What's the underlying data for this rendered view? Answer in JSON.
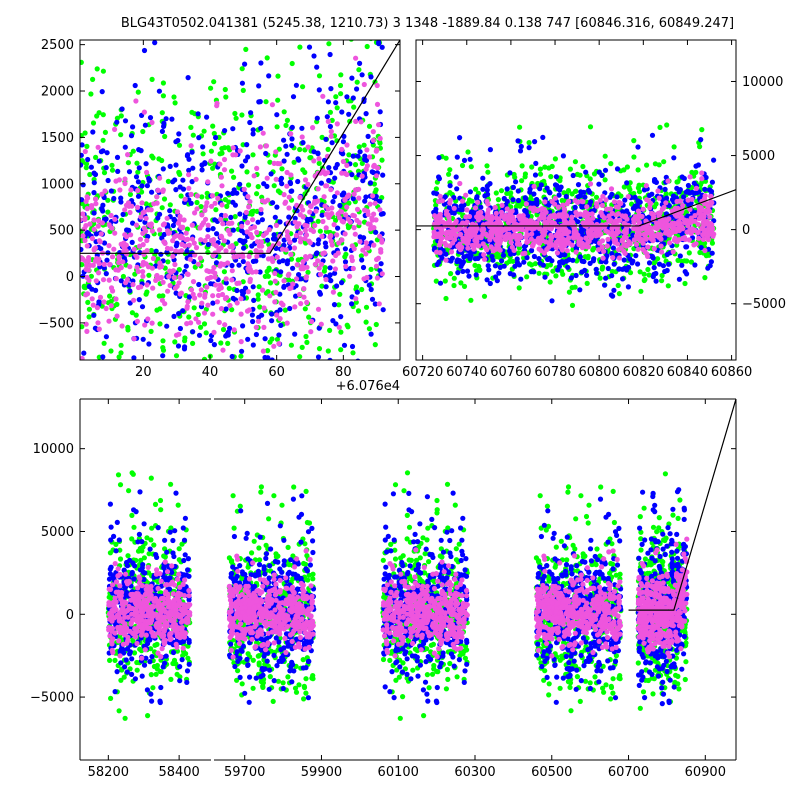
{
  "figure": {
    "title": "BLG43T0502.041381 (5245.38, 1210.73)  3 1348 -1889.84 0.138 747 [60846.316, 60849.247]"
  },
  "colors": {
    "series_a": "#0000ff",
    "series_b": "#00ff00",
    "series_c": "#ee55dd",
    "fit_line": "#000000",
    "background": "#ffffff"
  },
  "chart_data": [
    {
      "type": "scatter",
      "panel": "zoom-top-left",
      "xlim": [
        1,
        97
      ],
      "ylim": [
        -900,
        2550
      ],
      "x_offset_label": "+6.076e4",
      "x_ticks": [
        20,
        40,
        60,
        80
      ],
      "x_tick_labels": [
        "20",
        "40",
        "60",
        "80"
      ],
      "y_ticks": [
        -500,
        0,
        500,
        1000,
        1500,
        2000,
        2500
      ],
      "y_tick_labels": [
        "−500",
        "0",
        "500",
        "1000",
        "1500",
        "2000",
        "2500"
      ],
      "series": [
        {
          "color": "#00ff00",
          "x_range": [
            1,
            92
          ],
          "y_center": 400,
          "y_spread": 900
        },
        {
          "color": "#0000ff",
          "x_range": [
            1,
            92
          ],
          "y_center": 350,
          "y_spread": 800
        },
        {
          "color": "#ee55dd",
          "x_range": [
            1,
            92
          ],
          "y_center": 280,
          "y_spread": 450
        }
      ],
      "model_line": {
        "x": [
          1,
          58,
          97
        ],
        "y": [
          250,
          250,
          2550
        ]
      }
    },
    {
      "type": "scatter",
      "panel": "mid-top-right",
      "xlim": [
        60717,
        60862
      ],
      "ylim": [
        -8800,
        12800
      ],
      "x_ticks": [
        60720,
        60740,
        60760,
        60780,
        60800,
        60820,
        60840,
        60860
      ],
      "x_tick_labels": [
        "60720",
        "60740",
        "60760",
        "60780",
        "60800",
        "60820",
        "60840",
        "60860"
      ],
      "y_ticks": [
        -5000,
        0,
        5000,
        10000
      ],
      "y_tick_labels": [
        "−5000",
        "0",
        "5000",
        "10000"
      ],
      "series": [
        {
          "color": "#00ff00",
          "x_range": [
            60725,
            60852
          ],
          "y_center": 0,
          "y_spread": 1800
        },
        {
          "color": "#0000ff",
          "x_range": [
            60725,
            60852
          ],
          "y_center": 0,
          "y_spread": 1600
        },
        {
          "color": "#ee55dd",
          "x_range": [
            60725,
            60852
          ],
          "y_center": 0,
          "y_spread": 800
        }
      ],
      "model_line": {
        "x": [
          60717,
          60818,
          60862
        ],
        "y": [
          250,
          250,
          2700
        ]
      }
    },
    {
      "type": "scatter",
      "panel": "full-bottom",
      "ylim": [
        -8800,
        13000
      ],
      "y_ticks": [
        -5000,
        0,
        5000,
        10000
      ],
      "y_tick_labels": [
        "−5000",
        "0",
        "5000",
        "10000"
      ],
      "segments": [
        {
          "xlim": [
            58120,
            58490
          ],
          "x_ticks": [
            58200,
            58400
          ],
          "x_tick_labels": [
            "58200",
            "58400"
          ],
          "data_x": [
            58195,
            58430
          ]
        },
        {
          "xlim": [
            59620,
            60980
          ],
          "x_ticks": [
            59700,
            59900,
            60100,
            60300,
            60500,
            60700,
            60900
          ],
          "x_tick_labels": [
            "59700",
            "59900",
            "60100",
            "60300",
            "60500",
            "60700",
            "60900"
          ],
          "data_x": [
            59660,
            60850
          ]
        }
      ],
      "seasons": [
        [
          58200,
          58430
        ],
        [
          59660,
          59880
        ],
        [
          60060,
          60280
        ],
        [
          60460,
          60680
        ],
        [
          60725,
          60852
        ]
      ],
      "series": [
        {
          "color": "#00ff00",
          "y_center": 0,
          "y_spread": 2200
        },
        {
          "color": "#0000ff",
          "y_center": 0,
          "y_spread": 1900
        },
        {
          "color": "#ee55dd",
          "y_center": 0,
          "y_spread": 1000
        }
      ],
      "model_line": {
        "x": [
          60700,
          60818,
          60980
        ],
        "y": [
          250,
          250,
          13000
        ]
      }
    }
  ]
}
